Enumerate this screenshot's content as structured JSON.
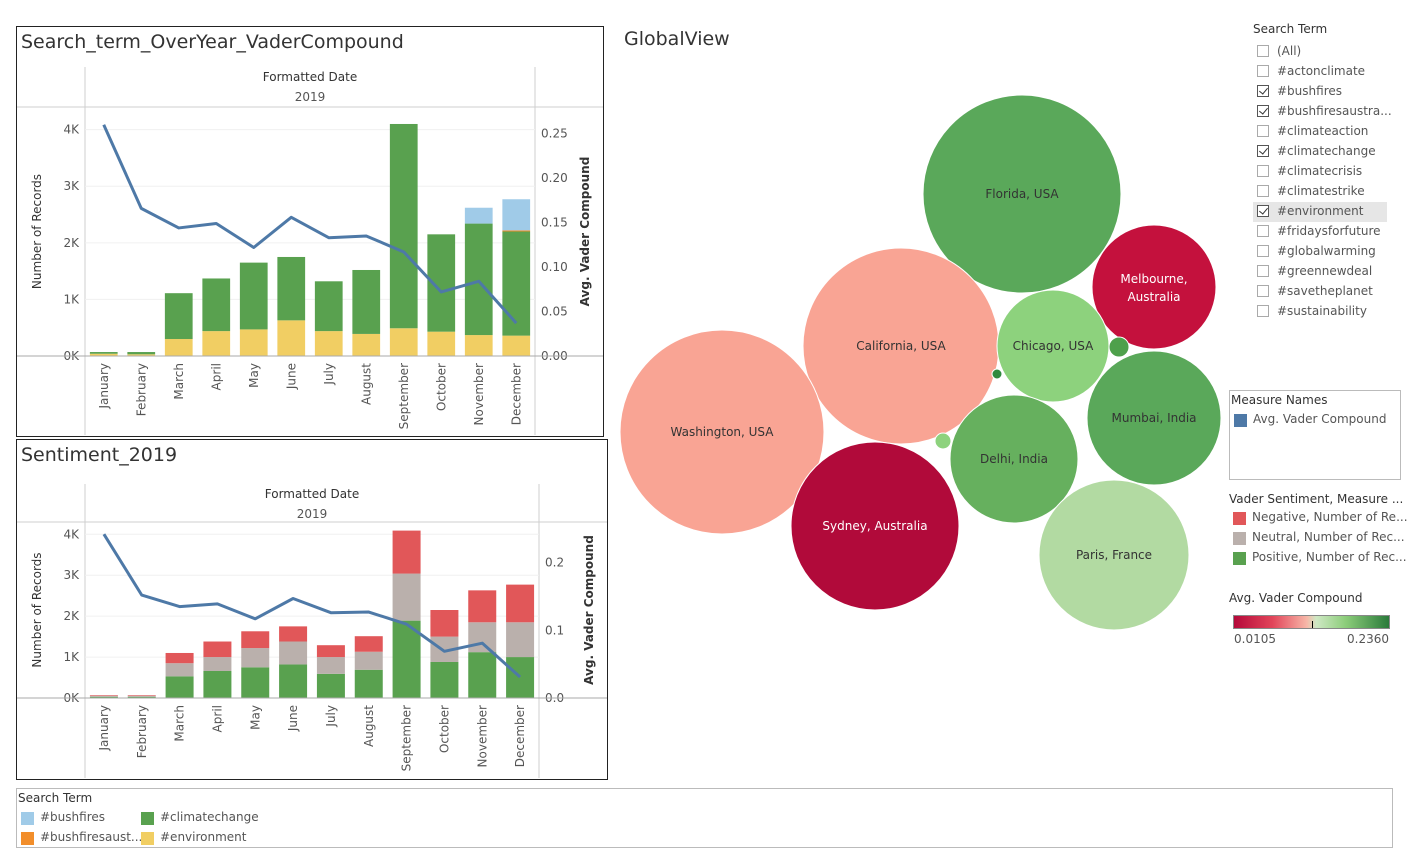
{
  "panels": {
    "top_title": "Search_term_OverYear_VaderCompound",
    "bottom_title": "Sentiment_2019",
    "global_title": "GlobalView"
  },
  "search_term_filter": {
    "title": "Search Term",
    "items": [
      {
        "label": "(All)",
        "checked": false
      },
      {
        "label": "#actonclimate",
        "checked": false
      },
      {
        "label": "#bushfires",
        "checked": true
      },
      {
        "label": "#bushfiresaustra...",
        "checked": true
      },
      {
        "label": "#climateaction",
        "checked": false
      },
      {
        "label": "#climatechange",
        "checked": true
      },
      {
        "label": "#climatecrisis",
        "checked": false
      },
      {
        "label": "#climatestrike",
        "checked": false
      },
      {
        "label": "#environment",
        "checked": true,
        "highlighted": true
      },
      {
        "label": "#fridaysforfuture",
        "checked": false
      },
      {
        "label": "#globalwarming",
        "checked": false
      },
      {
        "label": "#greennewdeal",
        "checked": false
      },
      {
        "label": "#savetheplanet",
        "checked": false
      },
      {
        "label": "#sustainability",
        "checked": false
      }
    ]
  },
  "measure_names_legend": {
    "title": "Measure Names",
    "items": [
      {
        "label": "Avg. Vader Compound",
        "color": "#4e79a7"
      }
    ]
  },
  "sentiment_legend": {
    "title": "Vader Sentiment, Measure ...",
    "items": [
      {
        "label": "Negative, Number of Re...",
        "color": "#e15759"
      },
      {
        "label": "Neutral, Number of Rec...",
        "color": "#bab0ac"
      },
      {
        "label": "Positive, Number of Rec...",
        "color": "#59a14f"
      }
    ]
  },
  "color_scale_legend": {
    "title": "Avg. Vader Compound",
    "min_label": "0.0105",
    "max_label": "0.2360"
  },
  "bottom_legend": {
    "title": "Search Term",
    "items": [
      {
        "label": "#bushfires",
        "color": "#a0cbe8"
      },
      {
        "label": "#climatechange",
        "color": "#59a14f"
      },
      {
        "label": "#bushfiresaust...",
        "color": "#f28e2b"
      },
      {
        "label": "#environment",
        "color": "#f1ce63"
      }
    ]
  },
  "chart_data": [
    {
      "type": "bar",
      "title": "Search_term_OverYear_VaderCompound",
      "header": "Formatted Date",
      "subheader": "2019",
      "ylabel": "Number of Records",
      "y2label": "Avg. Vader Compound",
      "ylim": [
        0,
        4400
      ],
      "y2lim": [
        0,
        0.28
      ],
      "y_ticks": [
        "0K",
        "1K",
        "2K",
        "3K",
        "4K"
      ],
      "y2_ticks": [
        "0.00",
        "0.05",
        "0.10",
        "0.15",
        "0.20",
        "0.25"
      ],
      "stacked": true,
      "categories": [
        "January",
        "February",
        "March",
        "April",
        "May",
        "June",
        "July",
        "August",
        "September",
        "October",
        "November",
        "December"
      ],
      "series": [
        {
          "name": "#environment",
          "color": "#f1ce63",
          "values": [
            40,
            30,
            300,
            440,
            470,
            630,
            440,
            390,
            490,
            430,
            370,
            360
          ]
        },
        {
          "name": "#climatechange",
          "color": "#59a14f",
          "values": [
            30,
            40,
            810,
            930,
            1180,
            1120,
            880,
            1130,
            3610,
            1720,
            1970,
            1840
          ]
        },
        {
          "name": "#bushfiresaust...",
          "color": "#f28e2b",
          "values": [
            0,
            0,
            0,
            0,
            0,
            0,
            0,
            0,
            0,
            0,
            0,
            20
          ]
        },
        {
          "name": "#bushfires",
          "color": "#a0cbe8",
          "values": [
            0,
            0,
            0,
            0,
            0,
            0,
            0,
            0,
            0,
            0,
            280,
            550
          ]
        }
      ],
      "line": {
        "name": "Avg. Vader Compound",
        "color": "#4e79a7",
        "values": [
          0.26,
          0.166,
          0.144,
          0.149,
          0.122,
          0.156,
          0.133,
          0.135,
          0.117,
          0.072,
          0.084,
          0.037
        ]
      }
    },
    {
      "type": "bar",
      "title": "Sentiment_2019",
      "header": "Formatted Date",
      "subheader": "2019",
      "ylabel": "Number of Records",
      "y2label": "Avg. Vader Compound",
      "ylim": [
        0,
        4300
      ],
      "y2lim": [
        0,
        0.26
      ],
      "y_ticks": [
        "0K",
        "1K",
        "2K",
        "3K",
        "4K"
      ],
      "y2_ticks": [
        "0.0",
        "0.1",
        "0.2"
      ],
      "stacked": true,
      "categories": [
        "January",
        "February",
        "March",
        "April",
        "May",
        "June",
        "July",
        "August",
        "September",
        "October",
        "November",
        "December"
      ],
      "series": [
        {
          "name": "Positive, Number of Rec...",
          "color": "#59a14f",
          "values": [
            30,
            30,
            530,
            660,
            750,
            820,
            590,
            690,
            1890,
            880,
            1120,
            1000
          ]
        },
        {
          "name": "Neutral, Number of Rec...",
          "color": "#bab0ac",
          "values": [
            25,
            25,
            320,
            340,
            470,
            560,
            410,
            440,
            1150,
            620,
            730,
            850
          ]
        },
        {
          "name": "Negative, Number of Re...",
          "color": "#e15759",
          "values": [
            15,
            15,
            250,
            380,
            410,
            370,
            290,
            380,
            1050,
            650,
            780,
            920
          ]
        }
      ],
      "line": {
        "name": "Avg. Vader Compound",
        "color": "#4e79a7",
        "values": [
          0.242,
          0.152,
          0.135,
          0.139,
          0.117,
          0.147,
          0.126,
          0.127,
          0.109,
          0.069,
          0.081,
          0.031
        ]
      }
    },
    {
      "type": "bubble",
      "title": "GlobalView",
      "color_field": "Avg. Vader Compound",
      "bubbles": [
        {
          "label": "Florida, USA",
          "color": "#5aa85a"
        },
        {
          "label": "Melbourne, Australia",
          "label_lines": [
            "Melbourne,",
            "Australia"
          ],
          "color": "#c4113d"
        },
        {
          "label": "California, USA",
          "color": "#f9a494"
        },
        {
          "label": "Chicago, USA",
          "color": "#8dd27d"
        },
        {
          "label": "Washington, USA",
          "color": "#f9a494"
        },
        {
          "label": "Mumbai, India",
          "color": "#5aa85a"
        },
        {
          "label": "Delhi, India",
          "color": "#66b05e"
        },
        {
          "label": "Sydney, Australia",
          "color": "#b10a3a"
        },
        {
          "label": "Paris, France",
          "color": "#b2daa2"
        },
        {
          "label": "",
          "color": "#4ea04b"
        },
        {
          "label": "",
          "color": "#2f8a3e"
        },
        {
          "label": "",
          "color": "#8dd27d"
        }
      ]
    }
  ]
}
